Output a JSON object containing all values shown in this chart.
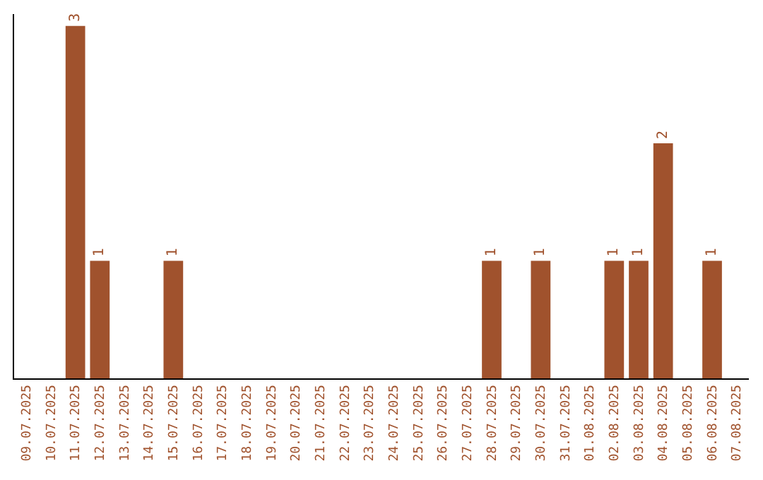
{
  "chart_data": {
    "type": "bar",
    "categories": [
      "09.07.2025",
      "10.07.2025",
      "11.07.2025",
      "12.07.2025",
      "13.07.2025",
      "14.07.2025",
      "15.07.2025",
      "16.07.2025",
      "17.07.2025",
      "18.07.2025",
      "19.07.2025",
      "20.07.2025",
      "21.07.2025",
      "22.07.2025",
      "23.07.2025",
      "24.07.2025",
      "25.07.2025",
      "26.07.2025",
      "27.07.2025",
      "28.07.2025",
      "29.07.2025",
      "30.07.2025",
      "31.07.2025",
      "01.08.2025",
      "02.08.2025",
      "03.08.2025",
      "04.08.2025",
      "05.08.2025",
      "06.08.2025",
      "07.08.2025"
    ],
    "values": [
      0,
      0,
      3,
      1,
      0,
      0,
      1,
      0,
      0,
      0,
      0,
      0,
      0,
      0,
      0,
      0,
      0,
      0,
      0,
      1,
      0,
      1,
      0,
      0,
      1,
      1,
      2,
      0,
      1,
      0
    ],
    "value_labels": [
      null,
      null,
      "3",
      "1",
      null,
      null,
      "1",
      null,
      null,
      null,
      null,
      null,
      null,
      null,
      null,
      null,
      null,
      null,
      null,
      "1",
      null,
      "1",
      null,
      null,
      "1",
      "1",
      "2",
      null,
      "1",
      null
    ],
    "color": "#a0522d",
    "ylim": [
      0,
      3.1
    ],
    "tick_labels": "x",
    "legend": false
  }
}
